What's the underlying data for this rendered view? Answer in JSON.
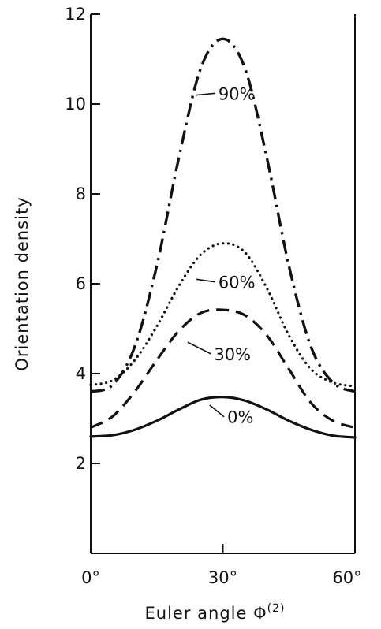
{
  "chart_data": {
    "type": "line",
    "title": "",
    "xlabel": "Euler angle Φ",
    "xlabel_superscript": "(2)",
    "ylabel": "Orientation density",
    "xlim": [
      0,
      60
    ],
    "ylim": [
      0,
      12
    ],
    "grid": false,
    "x_ticks": [
      {
        "value": 0,
        "label": "0°"
      },
      {
        "value": 30,
        "label": "30°"
      },
      {
        "value": 60,
        "label": "60°"
      }
    ],
    "y_ticks": [
      {
        "value": 2,
        "label": "2"
      },
      {
        "value": 4,
        "label": "4"
      },
      {
        "value": 6,
        "label": "6"
      },
      {
        "value": 8,
        "label": "8"
      },
      {
        "value": 10,
        "label": "10"
      },
      {
        "value": 12,
        "label": "12"
      }
    ],
    "series": [
      {
        "name": "0%",
        "style": "solid",
        "x": [
          0,
          5,
          10,
          15,
          20,
          25,
          30,
          35,
          40,
          45,
          50,
          55,
          60
        ],
        "values": [
          2.6,
          2.63,
          2.75,
          2.95,
          3.2,
          3.42,
          3.48,
          3.4,
          3.2,
          2.95,
          2.75,
          2.62,
          2.58
        ]
      },
      {
        "name": "30%",
        "style": "dashed",
        "x": [
          0,
          5,
          10,
          15,
          20,
          25,
          30,
          35,
          40,
          45,
          50,
          55,
          60
        ],
        "values": [
          2.8,
          3.05,
          3.6,
          4.3,
          4.95,
          5.35,
          5.42,
          5.3,
          4.85,
          4.1,
          3.35,
          2.95,
          2.8
        ]
      },
      {
        "name": "60%",
        "style": "dotted",
        "x": [
          0,
          5,
          10,
          15,
          20,
          25,
          30,
          35,
          40,
          45,
          50,
          55,
          60
        ],
        "values": [
          3.75,
          3.85,
          4.3,
          5.05,
          5.95,
          6.65,
          6.9,
          6.7,
          5.9,
          4.85,
          4.1,
          3.8,
          3.72
        ]
      },
      {
        "name": "90%",
        "style": "dash-dot",
        "x": [
          0,
          5,
          10,
          15,
          20,
          25,
          30,
          35,
          40,
          45,
          50,
          55,
          60
        ],
        "values": [
          3.6,
          3.75,
          4.6,
          6.4,
          8.8,
          10.8,
          11.45,
          10.8,
          8.8,
          6.4,
          4.6,
          3.8,
          3.6
        ]
      }
    ],
    "annotations": [
      {
        "text": "90%",
        "series": "90%",
        "x": 24,
        "y": 10.2,
        "label_x": 29,
        "label_y": 10.1
      },
      {
        "text": "60%",
        "series": "60%",
        "x": 24,
        "y": 6.1,
        "label_x": 29,
        "label_y": 5.9
      },
      {
        "text": "30%",
        "series": "30%",
        "x": 22,
        "y": 4.7,
        "label_x": 28,
        "label_y": 4.3
      },
      {
        "text": "0%",
        "series": "0%",
        "x": 27,
        "y": 3.3,
        "label_x": 31,
        "label_y": 2.9
      }
    ]
  }
}
